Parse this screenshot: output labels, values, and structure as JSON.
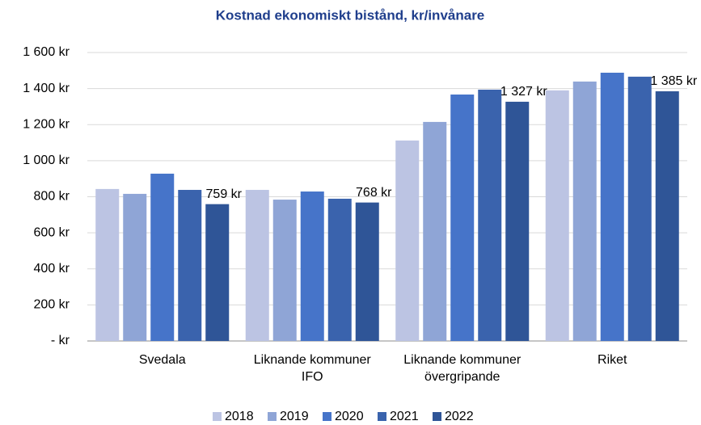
{
  "chart_data": {
    "type": "bar",
    "title": "Kostnad ekonomiskt bistånd, kr/invånare",
    "categories": [
      "Svedala",
      "Liknande kommuner\nIFO",
      "Liknande kommuner\növergripande",
      "Riket"
    ],
    "series": [
      {
        "name": "2018",
        "color": "#bcc4e3",
        "values": [
          843,
          838,
          1112,
          1390
        ]
      },
      {
        "name": "2019",
        "color": "#8fa5d6",
        "values": [
          816,
          784,
          1215,
          1439
        ]
      },
      {
        "name": "2020",
        "color": "#4674c9",
        "values": [
          928,
          829,
          1367,
          1488
        ]
      },
      {
        "name": "2021",
        "color": "#3a63ad",
        "values": [
          838,
          789,
          1394,
          1466
        ]
      },
      {
        "name": "2022",
        "color": "#2f5597",
        "values": [
          759,
          768,
          1327,
          1385
        ],
        "value_labels": [
          "759 kr",
          "768 kr",
          "1 327 kr",
          "1 385 kr"
        ]
      }
    ],
    "ylim": [
      0,
      1600
    ],
    "yticks": [
      {
        "value": 0,
        "label": "-   kr"
      },
      {
        "value": 200,
        "label": "200 kr"
      },
      {
        "value": 400,
        "label": "400 kr"
      },
      {
        "value": 600,
        "label": "600 kr"
      },
      {
        "value": 800,
        "label": "800 kr"
      },
      {
        "value": 1000,
        "label": "1 000 kr"
      },
      {
        "value": 1200,
        "label": "1 200 kr"
      },
      {
        "value": 1400,
        "label": "1 400 kr"
      },
      {
        "value": 1600,
        "label": "1 600 kr"
      }
    ],
    "grid": true,
    "legend": "bottom"
  }
}
